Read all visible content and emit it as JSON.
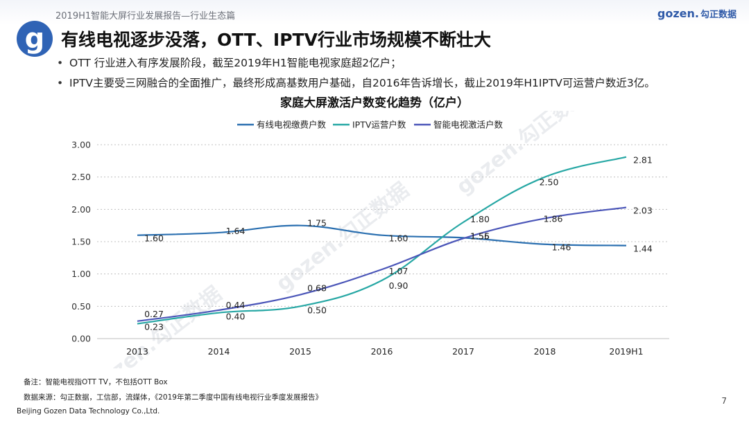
{
  "header": {
    "report_title": "2019H1智能大屏行业发展报告—行业生态篇",
    "brand_name": "gozen.",
    "brand_cn": "勾正数据",
    "logo_letter": "g"
  },
  "slide": {
    "title": "有线电视逐步没落，OTT、IPTV行业市场规模不断壮大",
    "bullets": [
      "OTT 行业进入有序发展阶段，截至2019年H1智能电视家庭超2亿户；",
      "IPTV主要受三网融合的全面推广，最终形成高基数用户基础，自2016年告诉增长，截止2019年H1IPTV可运营户数近3亿。"
    ],
    "bullet_symbol": "•"
  },
  "chart_data": {
    "type": "line",
    "title": "家庭大屏激活户数变化趋势（亿户）",
    "categories": [
      "2013",
      "2014",
      "2015",
      "2016",
      "2017",
      "2018",
      "2019H1"
    ],
    "series": [
      {
        "name": "有线电视缴费户数",
        "color": "#2a6fb0",
        "values": [
          1.6,
          1.64,
          1.75,
          1.6,
          1.56,
          1.46,
          1.44
        ]
      },
      {
        "name": "IPTV运营户数",
        "color": "#26a7a4",
        "values": [
          0.23,
          0.4,
          0.5,
          0.9,
          1.8,
          2.5,
          2.81
        ]
      },
      {
        "name": "智能电视激活户数",
        "color": "#4a55b8",
        "values": [
          0.27,
          0.44,
          0.68,
          1.07,
          1.55,
          1.86,
          2.03
        ]
      }
    ],
    "yticks": [
      "0.00",
      "0.50",
      "1.00",
      "1.50",
      "2.00",
      "2.50",
      "3.00"
    ],
    "ylim": [
      0,
      3
    ],
    "legend_position": "top",
    "grid": true,
    "xlabel": "",
    "ylabel": ""
  },
  "footer": {
    "note": "备注：智能电视指OTT TV，不包括OTT Box",
    "source": "数据来源：勾正数据，工信部，流媒体，《2019年第二季度中国有线电视行业季度发展报告》",
    "company": "Beijing Gozen Data Technology Co.,Ltd.",
    "page": "7"
  },
  "watermark_text": "gozen.勾正数据"
}
